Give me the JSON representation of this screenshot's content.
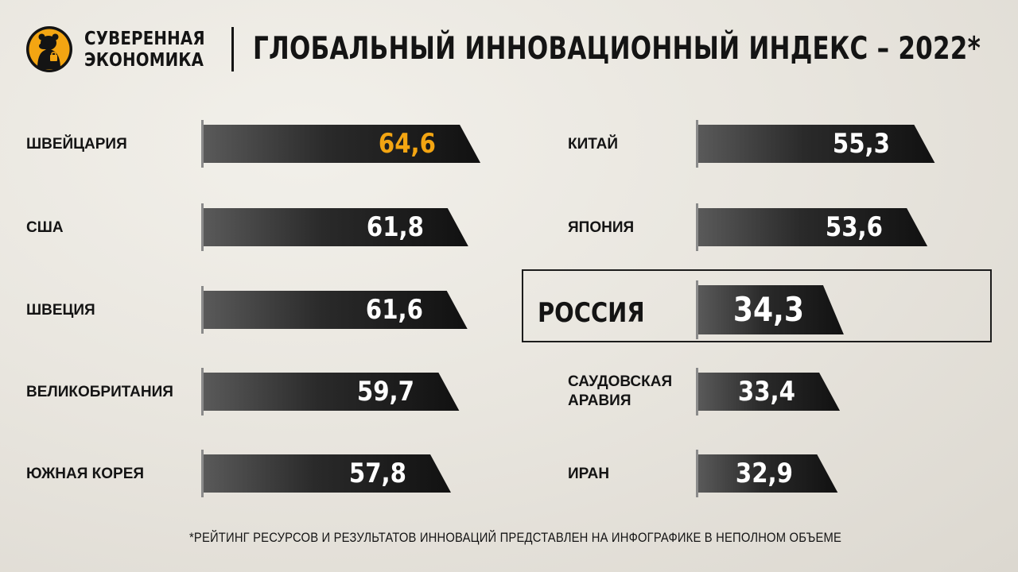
{
  "header": {
    "brand_line1": "СУВЕРЕННАЯ",
    "brand_line2": "ЭКОНОМИКА",
    "title": "ГЛОБАЛЬНЫЙ ИННОВАЦИОННЫЙ ИНДЕКС – 2022*"
  },
  "footnote": "*РЕЙТИНГ РЕСУРСОВ И РЕЗУЛЬТАТОВ ИННОВАЦИЙ ПРЕДСТАВЛЕН НА ИНФОГРАФИКЕ В НЕПОЛНОМ ОБЪЕМЕ",
  "colors": {
    "accent": "#f3a512",
    "bar_dark": "#111111",
    "bar_light": "#5a5a5a",
    "text": "#141414",
    "logo_circle": "#f3a512"
  },
  "icons": {
    "logo": "bear-logo-icon"
  },
  "chart_data": {
    "type": "bar",
    "orientation": "horizontal",
    "categories": [
      "ШВЕЙЦАРИЯ",
      "США",
      "ШВЕЦИЯ",
      "ВЕЛИКОБРИТАНИЯ",
      "ЮЖНАЯ КОРЕЯ",
      "КИТАЙ",
      "ЯПОНИЯ",
      "РОССИЯ",
      "САУДОВСКАЯ АРАВИЯ",
      "ИРАН"
    ],
    "values": [
      64.6,
      61.8,
      61.6,
      59.7,
      57.8,
      55.3,
      53.6,
      34.3,
      33.4,
      32.9
    ],
    "value_labels": [
      "64,6",
      "61,8",
      "61,6",
      "59,7",
      "57,8",
      "55,3",
      "53,6",
      "34,3",
      "33,4",
      "32,9"
    ],
    "highlighted": "РОССИЯ",
    "accent_value": "ШВЕЙЦАРИЯ",
    "columns": 2,
    "title": "ГЛОБАЛЬНЫЙ ИННОВАЦИОННЫЙ ИНДЕКС – 2022*",
    "grid": false,
    "legend": "none"
  }
}
